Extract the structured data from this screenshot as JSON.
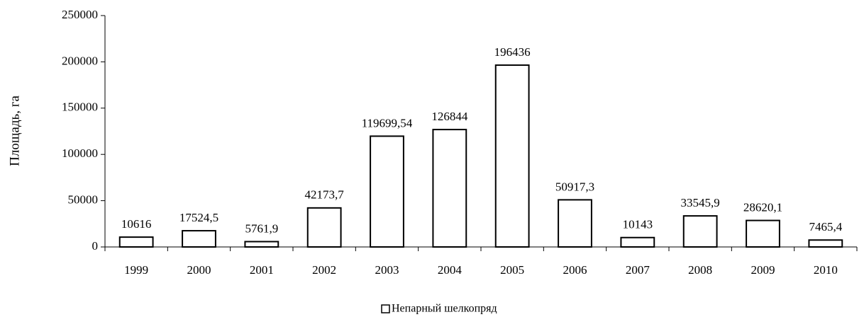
{
  "chart_data": {
    "type": "bar",
    "ylabel": "Площадь, га",
    "categories": [
      "1999",
      "2000",
      "2001",
      "2002",
      "2003",
      "2004",
      "2005",
      "2006",
      "2007",
      "2008",
      "2009",
      "2010"
    ],
    "series": [
      {
        "name": "Непарный шелкопряд",
        "color": "#ffffff",
        "edgecolor": "#000000",
        "values": [
          10616,
          17524.5,
          5761.9,
          42173.7,
          119699.54,
          126844,
          196436,
          50917.3,
          10143,
          33545.9,
          28620.1,
          7465.4
        ],
        "value_labels": [
          "10616",
          "17524,5",
          "5761,9",
          "42173,7",
          "119699,54",
          "126844",
          "196436",
          "50917,3",
          "10143",
          "33545,9",
          "28620,1",
          "7465,4"
        ]
      }
    ],
    "ylim": [
      0,
      250000
    ],
    "yticks": [
      0,
      50000,
      100000,
      150000,
      200000,
      250000
    ],
    "grid": false,
    "legend": "bottom"
  }
}
